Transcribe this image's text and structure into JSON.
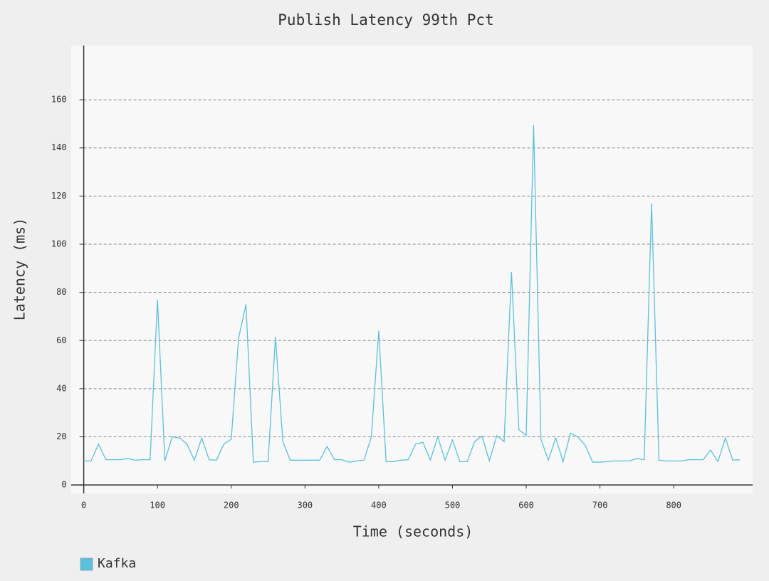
{
  "chart_data": {
    "type": "line",
    "title": "Publish Latency 99th Pct",
    "x_label": "Time (seconds)",
    "y_label": "Latency (ms)",
    "x": [
      0,
      10,
      20,
      30,
      40,
      50,
      60,
      70,
      80,
      90,
      100,
      110,
      120,
      130,
      140,
      150,
      160,
      170,
      180,
      190,
      200,
      210,
      220,
      230,
      240,
      250,
      260,
      270,
      280,
      290,
      300,
      310,
      320,
      330,
      340,
      350,
      360,
      370,
      380,
      390,
      400,
      410,
      420,
      430,
      440,
      450,
      460,
      470,
      480,
      490,
      500,
      510,
      520,
      530,
      540,
      550,
      560,
      570,
      580,
      590,
      600,
      610,
      620,
      630,
      640,
      650,
      660,
      670,
      680,
      690,
      700,
      710,
      720,
      730,
      740,
      750,
      760,
      770,
      780,
      790,
      800,
      810,
      820,
      830,
      840,
      850,
      860,
      870,
      880,
      890
    ],
    "series": [
      {
        "name": "Kafka",
        "color": "#5bc0de",
        "values": [
          10,
          10,
          17,
          10.5,
          10.5,
          10.5,
          11,
          10.3,
          10.5,
          10.5,
          77,
          10,
          20,
          19.5,
          17,
          10.3,
          19.5,
          10.5,
          10.3,
          17,
          19,
          61,
          75,
          9.5,
          9.7,
          9.7,
          61.5,
          18,
          10.3,
          10.3,
          10.3,
          10.3,
          10.3,
          16,
          10.5,
          10.5,
          9.5,
          10,
          10.3,
          20,
          64,
          9.7,
          9.7,
          10.3,
          10.5,
          17,
          17.7,
          10.3,
          20,
          10.3,
          18.7,
          9.7,
          9.7,
          18,
          20.3,
          10,
          20.5,
          18,
          88.5,
          23,
          20.5,
          149.5,
          19,
          10.3,
          19.5,
          9.7,
          21.5,
          20,
          16.5,
          9.5,
          9.5,
          9.7,
          10,
          10,
          10,
          11,
          10.5,
          117,
          10.3,
          10,
          10,
          10,
          10.5,
          10.5,
          10.5,
          14.5,
          9.7,
          19.5,
          10.3,
          10.5
        ]
      }
    ],
    "xlim": [
      -17,
      907
    ],
    "ylim": [
      -3.5,
      182.5
    ],
    "xticks": [
      0,
      100,
      200,
      300,
      400,
      500,
      600,
      700,
      800
    ],
    "yticks": [
      0,
      20,
      40,
      60,
      80,
      100,
      120,
      140,
      160
    ],
    "grid": true,
    "legend": "bottom-left"
  }
}
